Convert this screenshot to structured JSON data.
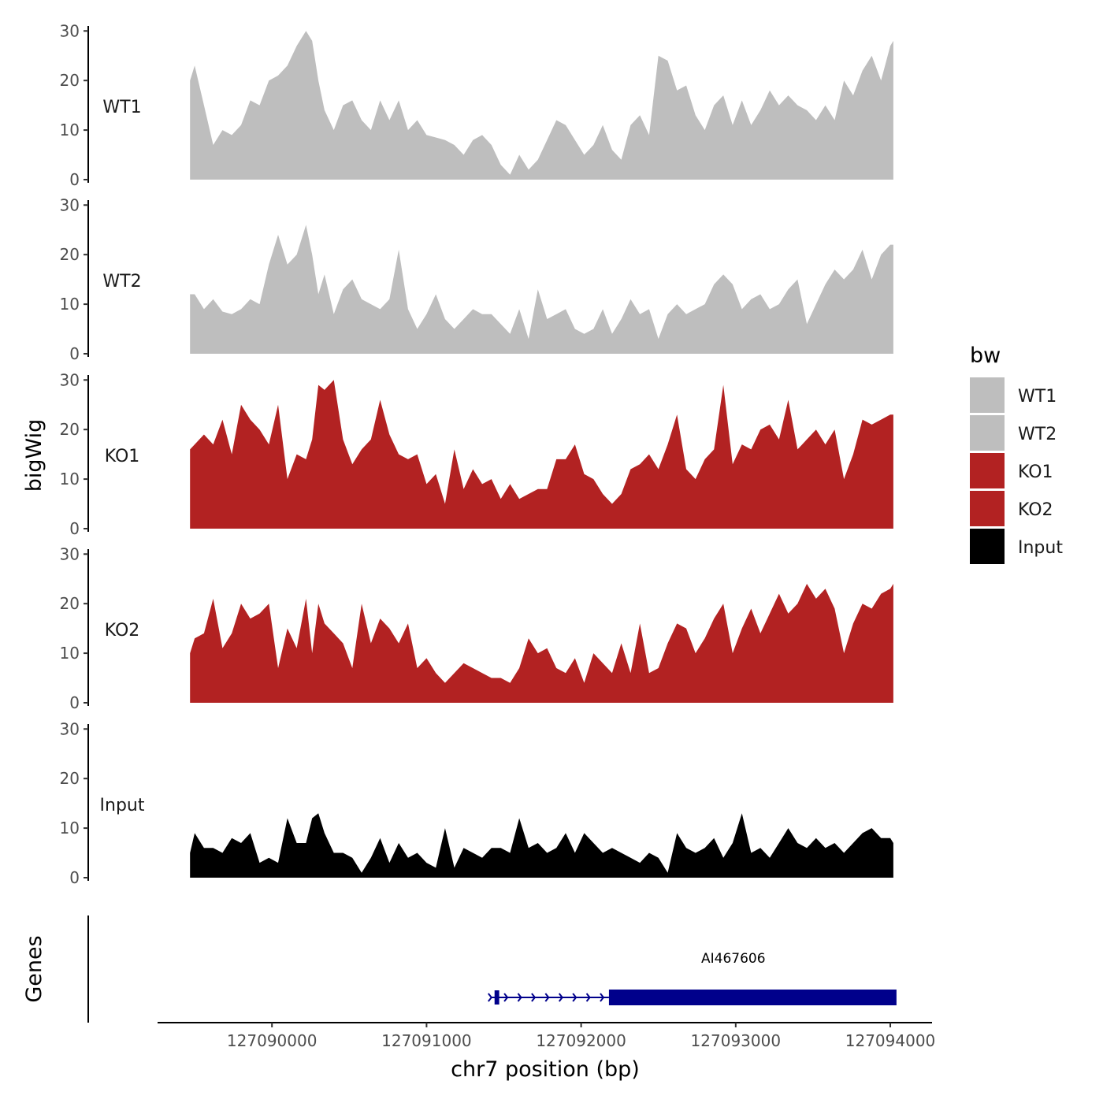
{
  "chart_data": {
    "type": "area",
    "chromosome": "chr7",
    "xlabel": "chr7 position (bp)",
    "ylabel": "bigWig",
    "genes_label": "Genes",
    "xlim": [
      127089260,
      127094270
    ],
    "ylim": [
      0,
      31
    ],
    "x_ticks": [
      127090000,
      127091000,
      127092000,
      127093000,
      127094000
    ],
    "x_tick_labels": [
      "127090000",
      "127091000",
      "127092000",
      "127093000",
      "127094000"
    ],
    "y_ticks": [
      0,
      10,
      20,
      30
    ],
    "y_tick_labels": [
      "0",
      "10",
      "20",
      "30"
    ],
    "legend": {
      "title": "bw",
      "entries": [
        {
          "label": "WT1",
          "color": "#bebebe"
        },
        {
          "label": "WT2",
          "color": "#bebebe"
        },
        {
          "label": "KO1",
          "color": "#b22222"
        },
        {
          "label": "KO2",
          "color": "#b22222"
        },
        {
          "label": "Input",
          "color": "#000000"
        }
      ]
    },
    "series": [
      {
        "name": "WT1",
        "color": "#bebebe",
        "x": [
          127089470,
          127089500,
          127089560,
          127089620,
          127089680,
          127089740,
          127089800,
          127089860,
          127089920,
          127089980,
          127090040,
          127090100,
          127090160,
          127090220,
          127090260,
          127090300,
          127090340,
          127090400,
          127090460,
          127090520,
          127090580,
          127090640,
          127090700,
          127090760,
          127090820,
          127090880,
          127090940,
          127091000,
          127091060,
          127091120,
          127091180,
          127091240,
          127091300,
          127091360,
          127091420,
          127091480,
          127091540,
          127091600,
          127091660,
          127091720,
          127091780,
          127091840,
          127091900,
          127091960,
          127092020,
          127092080,
          127092140,
          127092200,
          127092260,
          127092320,
          127092380,
          127092440,
          127092500,
          127092560,
          127092620,
          127092680,
          127092740,
          127092800,
          127092860,
          127092920,
          127092980,
          127093040,
          127093100,
          127093160,
          127093220,
          127093280,
          127093340,
          127093400,
          127093460,
          127093520,
          127093580,
          127093640,
          127093700,
          127093760,
          127093820,
          127093880,
          127093940,
          127094000,
          127094020
        ],
        "values": [
          20,
          23,
          15,
          7,
          10,
          9,
          11,
          16,
          15,
          20,
          21,
          23,
          27,
          30,
          28,
          20,
          14,
          10,
          15,
          16,
          12,
          10,
          16,
          12,
          16,
          10,
          12,
          9,
          8.5,
          8,
          7,
          5,
          8,
          9,
          7,
          3,
          1,
          5,
          2,
          4,
          8,
          12,
          11,
          8,
          5,
          7,
          11,
          6,
          4,
          11,
          13,
          9,
          25,
          24,
          18,
          19,
          13,
          10,
          15,
          17,
          11,
          16,
          11,
          14,
          18,
          15,
          17,
          15,
          14,
          12,
          15,
          12,
          20,
          17,
          22,
          25,
          20,
          27,
          28
        ]
      },
      {
        "name": "WT2",
        "color": "#bebebe",
        "x": [
          127089470,
          127089500,
          127089560,
          127089620,
          127089680,
          127089740,
          127089800,
          127089860,
          127089920,
          127089980,
          127090040,
          127090100,
          127090160,
          127090220,
          127090260,
          127090300,
          127090340,
          127090400,
          127090460,
          127090520,
          127090580,
          127090640,
          127090700,
          127090760,
          127090820,
          127090880,
          127090940,
          127091000,
          127091060,
          127091120,
          127091180,
          127091240,
          127091300,
          127091360,
          127091420,
          127091480,
          127091540,
          127091600,
          127091660,
          127091720,
          127091780,
          127091840,
          127091900,
          127091960,
          127092020,
          127092080,
          127092140,
          127092200,
          127092260,
          127092320,
          127092380,
          127092440,
          127092500,
          127092560,
          127092620,
          127092680,
          127092740,
          127092800,
          127092860,
          127092920,
          127092980,
          127093040,
          127093100,
          127093160,
          127093220,
          127093280,
          127093340,
          127093400,
          127093460,
          127093520,
          127093580,
          127093640,
          127093700,
          127093760,
          127093820,
          127093880,
          127093940,
          127094000,
          127094020
        ],
        "values": [
          12,
          12,
          9,
          11,
          8.5,
          8,
          9,
          11,
          10,
          18,
          24,
          18,
          20,
          26,
          20,
          12,
          16,
          8,
          13,
          15,
          11,
          10,
          9,
          11,
          21,
          9,
          5,
          8,
          12,
          7,
          5,
          7,
          9,
          8,
          8,
          6,
          4,
          9,
          3,
          13,
          7,
          8,
          9,
          5,
          4,
          5,
          9,
          4,
          7,
          11,
          8,
          9,
          3,
          8,
          10,
          8,
          9,
          10,
          14,
          16,
          14,
          9,
          11,
          12,
          9,
          10,
          13,
          15,
          6,
          10,
          14,
          17,
          15,
          17,
          21,
          15,
          20,
          22,
          22
        ]
      },
      {
        "name": "KO1",
        "color": "#b22222",
        "x": [
          127089470,
          127089500,
          127089560,
          127089620,
          127089680,
          127089740,
          127089800,
          127089860,
          127089920,
          127089980,
          127090040,
          127090100,
          127090160,
          127090220,
          127090260,
          127090300,
          127090340,
          127090400,
          127090460,
          127090520,
          127090580,
          127090640,
          127090700,
          127090760,
          127090820,
          127090880,
          127090940,
          127091000,
          127091060,
          127091120,
          127091180,
          127091240,
          127091300,
          127091360,
          127091420,
          127091480,
          127091540,
          127091600,
          127091660,
          127091720,
          127091780,
          127091840,
          127091900,
          127091960,
          127092020,
          127092080,
          127092140,
          127092200,
          127092260,
          127092320,
          127092380,
          127092440,
          127092500,
          127092560,
          127092620,
          127092680,
          127092740,
          127092800,
          127092860,
          127092920,
          127092980,
          127093040,
          127093100,
          127093160,
          127093220,
          127093280,
          127093340,
          127093400,
          127093460,
          127093520,
          127093580,
          127093640,
          127093700,
          127093760,
          127093820,
          127093880,
          127093940,
          127094000,
          127094020
        ],
        "values": [
          16,
          17,
          19,
          17,
          22,
          15,
          25,
          22,
          20,
          17,
          25,
          10,
          15,
          14,
          18,
          29,
          28,
          30,
          18,
          13,
          16,
          18,
          26,
          19,
          15,
          14,
          15,
          9,
          11,
          5,
          16,
          8,
          12,
          9,
          10,
          6,
          9,
          6,
          7,
          8,
          8,
          14,
          14,
          17,
          11,
          10,
          7,
          5,
          7,
          12,
          13,
          15,
          12,
          17,
          23,
          12,
          10,
          14,
          16,
          29,
          13,
          17,
          16,
          20,
          21,
          18,
          26,
          16,
          18,
          20,
          17,
          20,
          10,
          15,
          22,
          21,
          22,
          23,
          23
        ]
      },
      {
        "name": "KO2",
        "color": "#b22222",
        "x": [
          127089470,
          127089500,
          127089560,
          127089620,
          127089680,
          127089740,
          127089800,
          127089860,
          127089920,
          127089980,
          127090040,
          127090100,
          127090160,
          127090220,
          127090260,
          127090300,
          127090340,
          127090400,
          127090460,
          127090520,
          127090580,
          127090640,
          127090700,
          127090760,
          127090820,
          127090880,
          127090940,
          127091000,
          127091060,
          127091120,
          127091180,
          127091240,
          127091300,
          127091360,
          127091420,
          127091480,
          127091540,
          127091600,
          127091660,
          127091720,
          127091780,
          127091840,
          127091900,
          127091960,
          127092020,
          127092080,
          127092140,
          127092200,
          127092260,
          127092320,
          127092380,
          127092440,
          127092500,
          127092560,
          127092620,
          127092680,
          127092740,
          127092800,
          127092860,
          127092920,
          127092980,
          127093040,
          127093100,
          127093160,
          127093220,
          127093280,
          127093340,
          127093400,
          127093460,
          127093520,
          127093580,
          127093640,
          127093700,
          127093760,
          127093820,
          127093880,
          127093940,
          127094000,
          127094020
        ],
        "values": [
          10,
          13,
          14,
          21,
          11,
          14,
          20,
          17,
          18,
          20,
          7,
          15,
          11,
          21,
          10,
          20,
          16,
          14,
          12,
          7,
          20,
          12,
          17,
          15,
          12,
          16,
          7,
          9,
          6,
          4,
          6,
          8,
          7,
          6,
          5,
          5,
          4,
          7,
          13,
          10,
          11,
          7,
          6,
          9,
          4,
          10,
          8,
          6,
          12,
          6,
          16,
          6,
          7,
          12,
          16,
          15,
          10,
          13,
          17,
          20,
          10,
          15,
          19,
          14,
          18,
          22,
          18,
          20,
          24,
          21,
          23,
          19,
          10,
          16,
          20,
          19,
          22,
          23,
          24
        ]
      },
      {
        "name": "Input",
        "color": "#000000",
        "x": [
          127089470,
          127089500,
          127089560,
          127089620,
          127089680,
          127089740,
          127089800,
          127089860,
          127089920,
          127089980,
          127090040,
          127090100,
          127090160,
          127090220,
          127090260,
          127090300,
          127090340,
          127090400,
          127090460,
          127090520,
          127090580,
          127090640,
          127090700,
          127090760,
          127090820,
          127090880,
          127090940,
          127091000,
          127091060,
          127091120,
          127091180,
          127091240,
          127091300,
          127091360,
          127091420,
          127091480,
          127091540,
          127091600,
          127091660,
          127091720,
          127091780,
          127091840,
          127091900,
          127091960,
          127092020,
          127092080,
          127092140,
          127092200,
          127092260,
          127092320,
          127092380,
          127092440,
          127092500,
          127092560,
          127092620,
          127092680,
          127092740,
          127092800,
          127092860,
          127092920,
          127092980,
          127093040,
          127093100,
          127093160,
          127093220,
          127093280,
          127093340,
          127093400,
          127093460,
          127093520,
          127093580,
          127093640,
          127093700,
          127093760,
          127093820,
          127093880,
          127093940,
          127094000,
          127094020
        ],
        "values": [
          5,
          9,
          6,
          6,
          5,
          8,
          7,
          9,
          3,
          4,
          3,
          12,
          7,
          7,
          12,
          13,
          9,
          5,
          5,
          4,
          1,
          4,
          8,
          3,
          7,
          4,
          5,
          3,
          2,
          10,
          2,
          6,
          5,
          4,
          6,
          6,
          5,
          12,
          6,
          7,
          5,
          6,
          9,
          5,
          9,
          7,
          5,
          6,
          5,
          4,
          3,
          5,
          4,
          1,
          9,
          6,
          5,
          6,
          8,
          4,
          7,
          13,
          5,
          6,
          4,
          7,
          10,
          7,
          6,
          8,
          6,
          7,
          5,
          7,
          9,
          10,
          8,
          8,
          7
        ]
      }
    ],
    "gene": {
      "name": "AI467606",
      "strand": "+",
      "start": 127091420,
      "end": 127094040,
      "intron_start": 127091470,
      "intron_end": 127092180,
      "small_exon": [
        127091440,
        127091470
      ],
      "cds": [
        127092180,
        127094040
      ]
    }
  }
}
